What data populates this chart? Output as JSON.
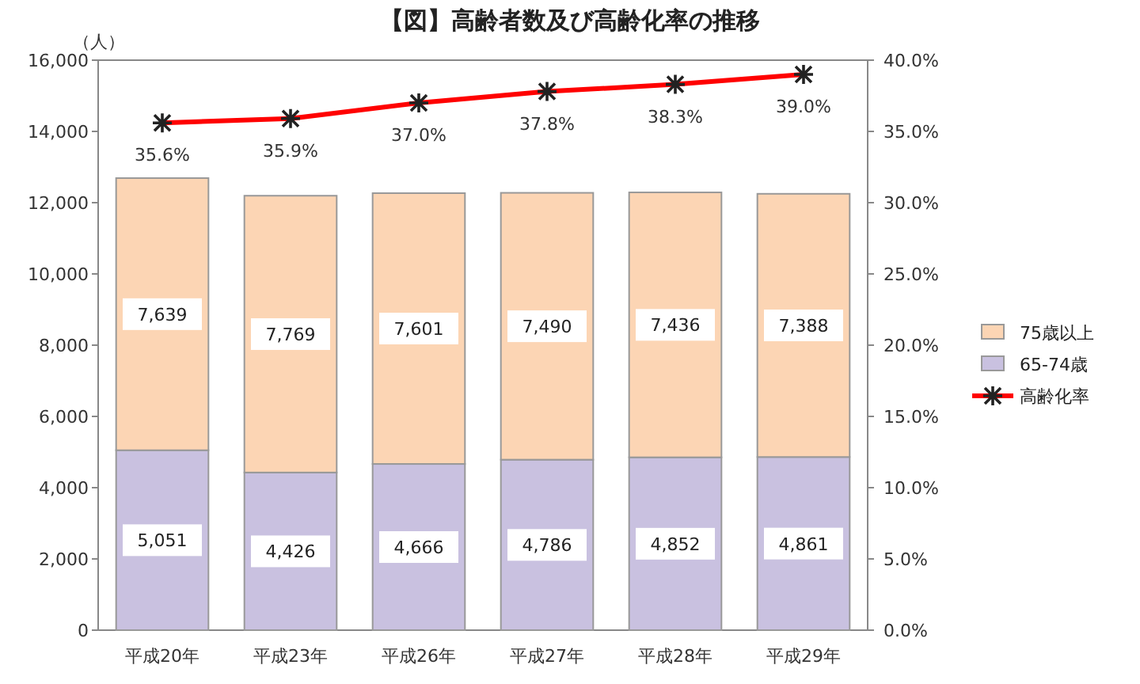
{
  "chart_data": {
    "type": "bar",
    "title": "【図】高齢者数及び高齢化率の推移",
    "ylabel": "（人）",
    "categories": [
      "平成20年",
      "平成23年",
      "平成26年",
      "平成27年",
      "平成28年",
      "平成29年"
    ],
    "stacked": true,
    "legend": "right",
    "grid": false,
    "ylim": [
      0,
      16000
    ],
    "yticks": [
      {
        "value": 0,
        "label": "0"
      },
      {
        "value": 2000,
        "label": "2,000"
      },
      {
        "value": 4000,
        "label": "4,000"
      },
      {
        "value": 6000,
        "label": "6,000"
      },
      {
        "value": 8000,
        "label": "8,000"
      },
      {
        "value": 10000,
        "label": "10,000"
      },
      {
        "value": 12000,
        "label": "12,000"
      },
      {
        "value": 14000,
        "label": "14,000"
      },
      {
        "value": 16000,
        "label": "16,000"
      }
    ],
    "y2lim": [
      0,
      40
    ],
    "y2ticks": [
      {
        "value": 0,
        "label": "0.0%"
      },
      {
        "value": 5,
        "label": "5.0%"
      },
      {
        "value": 10,
        "label": "10.0%"
      },
      {
        "value": 15,
        "label": "15.0%"
      },
      {
        "value": 20,
        "label": "20.0%"
      },
      {
        "value": 25,
        "label": "25.0%"
      },
      {
        "value": 30,
        "label": "30.0%"
      },
      {
        "value": 35,
        "label": "35.0%"
      },
      {
        "value": 40,
        "label": "40.0%"
      }
    ],
    "series": [
      {
        "name": "65-74歳",
        "color": "#c9c1e0",
        "values": [
          5051,
          4426,
          4666,
          4786,
          4852,
          4861
        ],
        "value_labels": [
          "5,051",
          "4,426",
          "4,666",
          "4,786",
          "4,852",
          "4,861"
        ]
      },
      {
        "name": "75歳以上",
        "color": "#fcd5b4",
        "values": [
          7639,
          7769,
          7601,
          7490,
          7436,
          7388
        ],
        "value_labels": [
          "7,639",
          "7,769",
          "7,601",
          "7,490",
          "7,436",
          "7,388"
        ]
      },
      {
        "name": "高齢化率",
        "type": "line",
        "axis": "y2",
        "color": "#ff0000",
        "marker": "cross",
        "values": [
          35.6,
          35.9,
          37.0,
          37.8,
          38.3,
          39.0
        ],
        "value_labels": [
          "35.6%",
          "35.9%",
          "37.0%",
          "37.8%",
          "38.3%",
          "39.0%"
        ]
      }
    ]
  }
}
